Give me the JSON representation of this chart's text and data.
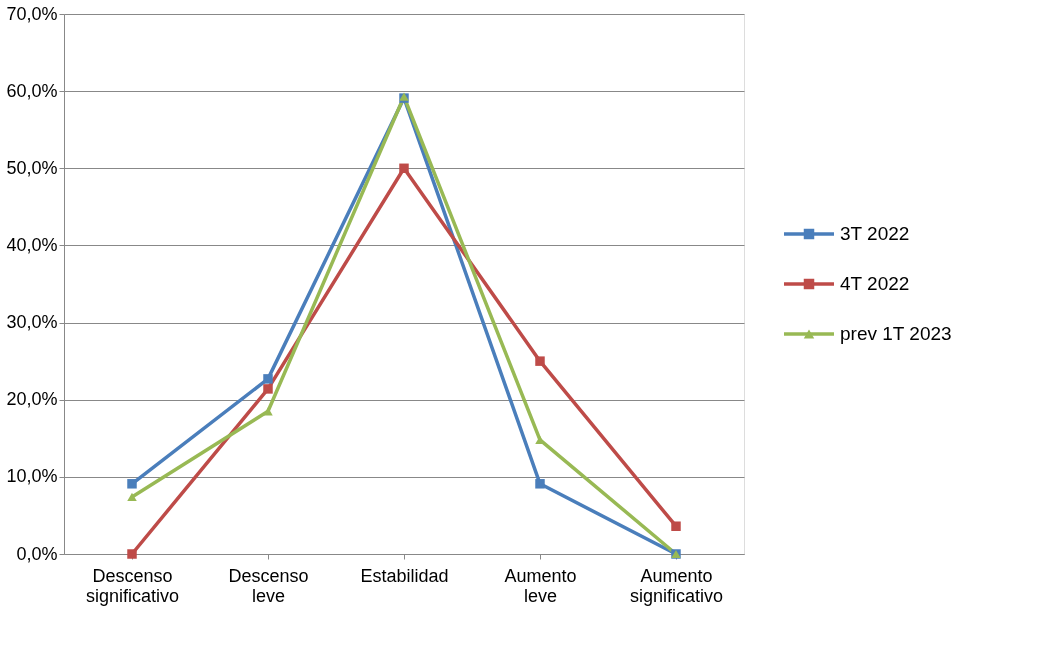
{
  "chart_data": {
    "type": "line",
    "categories": [
      "Descenso significativo",
      "Descenso leve",
      "Estabilidad",
      "Aumento leve",
      "Aumento significativo"
    ],
    "series": [
      {
        "name": "3T 2022",
        "color": "#4a7ebb",
        "marker": "square",
        "values": [
          9.1,
          22.7,
          59.1,
          9.1,
          0
        ]
      },
      {
        "name": "4T 2022",
        "color": "#be4b48",
        "marker": "square",
        "values": [
          0,
          21.4,
          50.0,
          25.0,
          3.6
        ]
      },
      {
        "name": "prev 1T 2023",
        "color": "#98b954",
        "marker": "triangle",
        "values": [
          7.4,
          18.5,
          59.3,
          14.8,
          0
        ]
      }
    ],
    "ylim": [
      0,
      70
    ],
    "yticks": [
      {
        "value": 0,
        "label": "0,0%"
      },
      {
        "value": 10,
        "label": "10,0%"
      },
      {
        "value": 20,
        "label": "20,0%"
      },
      {
        "value": 30,
        "label": "30,0%"
      },
      {
        "value": 40,
        "label": "40,0%"
      },
      {
        "value": 50,
        "label": "50,0%"
      },
      {
        "value": 60,
        "label": "60,0%"
      },
      {
        "value": 70,
        "label": "70,0%"
      }
    ],
    "grid": "y",
    "legend": "right"
  }
}
